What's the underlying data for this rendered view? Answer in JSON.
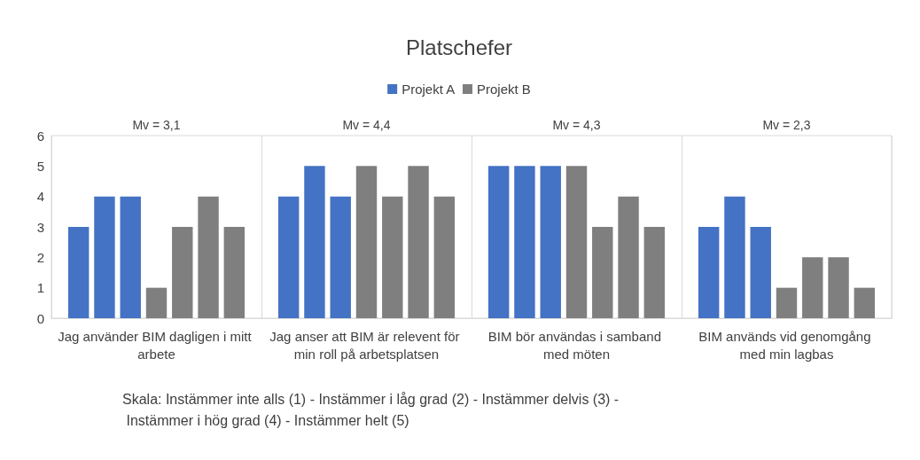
{
  "chart_data": {
    "type": "bar",
    "title": "Platschefer",
    "categories": [
      "Jag använder BIM dagligen i mitt arbete",
      "Jag anser att BIM är relevent för min roll på arbetsplatsen",
      "BIM bör användas i samband med möten",
      "BIM används vid genomgång med min lagbas"
    ],
    "series": [
      {
        "name": "Projekt A",
        "color": "#4472c4",
        "values": [
          3,
          4,
          5,
          3
        ]
      },
      {
        "color": "#4472c4",
        "values": [
          4,
          5,
          5,
          4
        ]
      },
      {
        "color": "#4472c4",
        "values": [
          4,
          4,
          5,
          3
        ]
      },
      {
        "name": "Projekt B",
        "color": "#7f7f7f",
        "values": [
          1,
          5,
          5,
          1
        ]
      },
      {
        "color": "#7f7f7f",
        "values": [
          3,
          4,
          3,
          2
        ]
      },
      {
        "color": "#7f7f7f",
        "values": [
          4,
          5,
          4,
          2
        ]
      },
      {
        "color": "#7f7f7f",
        "values": [
          3,
          4,
          3,
          1
        ]
      }
    ],
    "ylim": [
      0,
      6
    ],
    "yticks": [
      0,
      1,
      2,
      3,
      4,
      5,
      6
    ],
    "grid": "x",
    "legend": "top",
    "annotations": [
      "Mv = 3,1",
      "Mv = 4,4",
      "Mv = 4,3",
      "Mv = 2,3",
      "Skala: Instämmer inte alls (1) - Instämmer i låg grad (2) - Instämmer delvis (3) - Instämmer i hög grad (4) - Instämmer helt (5)"
    ]
  }
}
